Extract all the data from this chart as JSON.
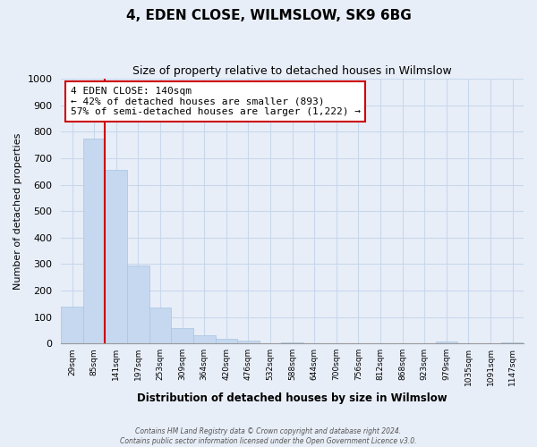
{
  "title": "4, EDEN CLOSE, WILMSLOW, SK9 6BG",
  "subtitle": "Size of property relative to detached houses in Wilmslow",
  "xlabel": "Distribution of detached houses by size in Wilmslow",
  "ylabel": "Number of detached properties",
  "bar_labels": [
    "29sqm",
    "85sqm",
    "141sqm",
    "197sqm",
    "253sqm",
    "309sqm",
    "364sqm",
    "420sqm",
    "476sqm",
    "532sqm",
    "588sqm",
    "644sqm",
    "700sqm",
    "756sqm",
    "812sqm",
    "868sqm",
    "923sqm",
    "979sqm",
    "1035sqm",
    "1091sqm",
    "1147sqm"
  ],
  "bar_values": [
    140,
    775,
    655,
    295,
    135,
    57,
    30,
    17,
    10,
    0,
    5,
    0,
    0,
    0,
    0,
    0,
    0,
    8,
    0,
    0,
    5
  ],
  "bar_color": "#c5d8ef",
  "bar_edge_color": "#a8c4e0",
  "property_line_label": "4 EDEN CLOSE: 140sqm",
  "annotation_line1": "← 42% of detached houses are smaller (893)",
  "annotation_line2": "57% of semi-detached houses are larger (1,222) →",
  "vline_index": 2,
  "vline_color": "#cc0000",
  "ylim": [
    0,
    1000
  ],
  "yticks": [
    0,
    100,
    200,
    300,
    400,
    500,
    600,
    700,
    800,
    900,
    1000
  ],
  "grid_color": "#c8d8ec",
  "bg_color": "#e8eef8",
  "plot_bg_color": "#e8eef8",
  "annotation_box_facecolor": "#ffffff",
  "annotation_box_edgecolor": "#cc0000",
  "footer_line1": "Contains HM Land Registry data © Crown copyright and database right 2024.",
  "footer_line2": "Contains public sector information licensed under the Open Government Licence v3.0."
}
